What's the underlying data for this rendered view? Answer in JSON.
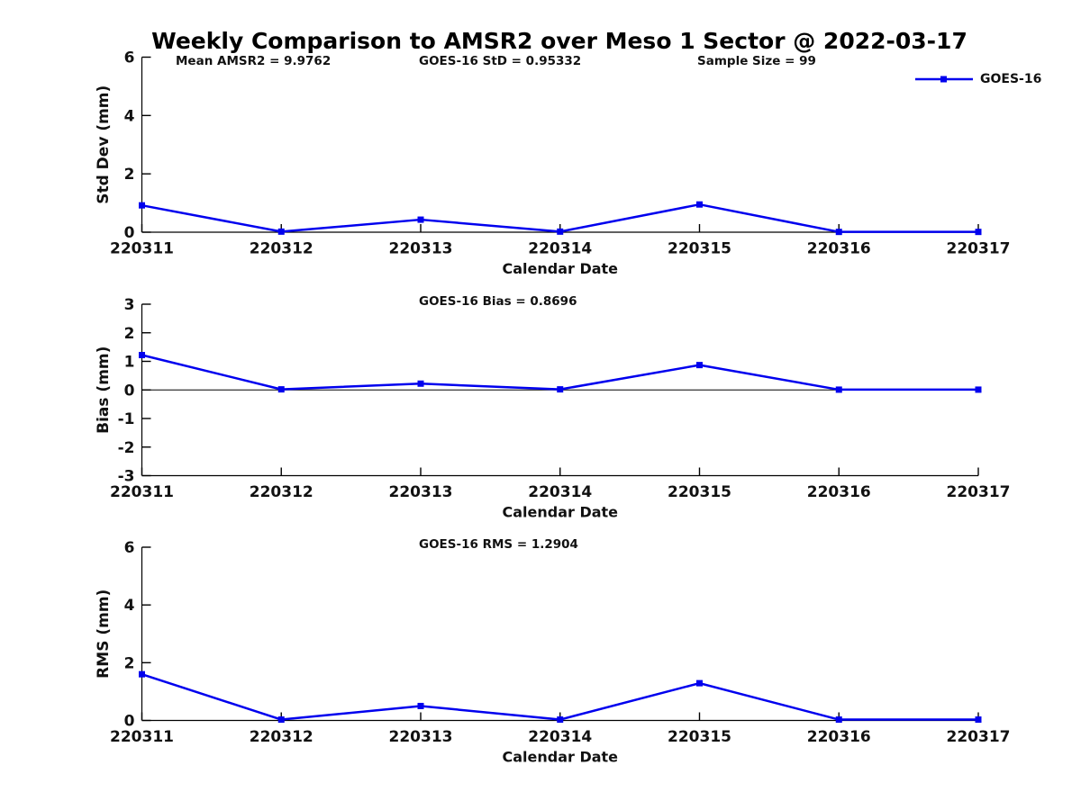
{
  "title": "Weekly Comparison to AMSR2 over Meso 1 Sector @ 2022-03-17",
  "legend": {
    "label": "GOES-16",
    "color": "#0000EE",
    "marker": "square"
  },
  "chart_data": [
    {
      "type": "line",
      "title": "",
      "xlabel": "Calendar Date",
      "ylabel": "Std Dev (mm)",
      "categories": [
        "220311",
        "220312",
        "220313",
        "220314",
        "220315",
        "220316",
        "220317"
      ],
      "series": [
        {
          "name": "GOES-16",
          "color": "#0000EE",
          "marker": "square",
          "values": [
            0.92,
            0.02,
            0.43,
            0.02,
            0.95,
            0.01,
            0.01
          ]
        }
      ],
      "ylim": [
        0,
        6
      ],
      "yticks": [
        0,
        2,
        4,
        6
      ],
      "grid": false,
      "zero_line": false,
      "annotations": [
        "Mean AMSR2 = 9.9762",
        "GOES-16 StD = 0.95332",
        "Sample Size = 99"
      ],
      "legend_position": "top-right-outside"
    },
    {
      "type": "line",
      "title": "",
      "xlabel": "Calendar Date",
      "ylabel": "Bias (mm)",
      "categories": [
        "220311",
        "220312",
        "220313",
        "220314",
        "220315",
        "220316",
        "220317"
      ],
      "series": [
        {
          "name": "GOES-16",
          "color": "#0000EE",
          "marker": "square",
          "values": [
            1.22,
            0.02,
            0.22,
            0.02,
            0.87,
            0.01,
            0.01
          ]
        }
      ],
      "ylim": [
        -3,
        3
      ],
      "yticks": [
        -3,
        -2,
        -1,
        0,
        1,
        2,
        3
      ],
      "grid": false,
      "zero_line": true,
      "annotations": [
        "GOES-16 Bias  = 0.8696"
      ],
      "legend_position": "none"
    },
    {
      "type": "line",
      "title": "",
      "xlabel": "Calendar Date",
      "ylabel": "RMS (mm)",
      "categories": [
        "220311",
        "220312",
        "220313",
        "220314",
        "220315",
        "220316",
        "220317"
      ],
      "series": [
        {
          "name": "GOES-16",
          "color": "#0000EE",
          "marker": "square",
          "values": [
            1.6,
            0.03,
            0.5,
            0.03,
            1.29,
            0.03,
            0.03
          ]
        }
      ],
      "ylim": [
        0,
        6
      ],
      "yticks": [
        0,
        2,
        4,
        6
      ],
      "grid": false,
      "zero_line": false,
      "annotations": [
        "GOES-16 RMS = 1.2904"
      ],
      "legend_position": "none"
    }
  ]
}
